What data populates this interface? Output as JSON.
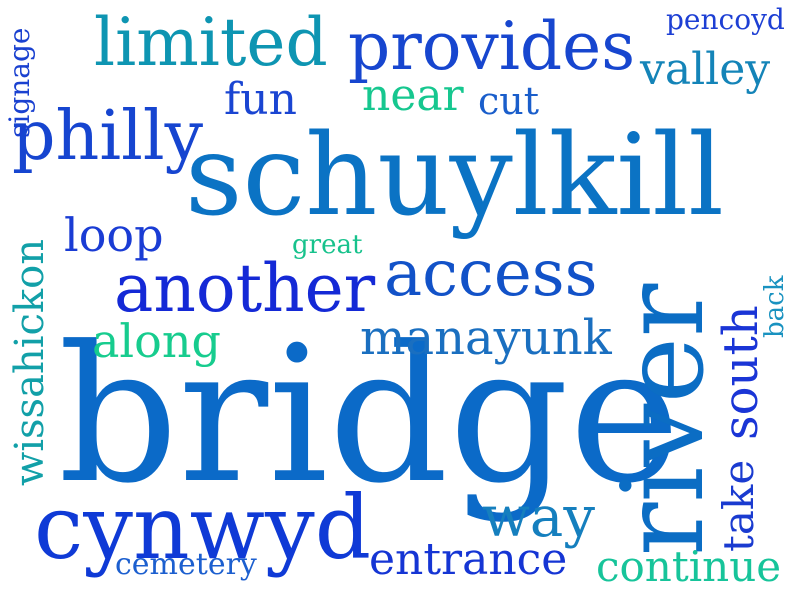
{
  "words": {
    "schuylkill": {
      "text": "schuylkill",
      "color": "#0b73c4"
    },
    "bridge": {
      "text": "bridge",
      "color": "#0b6ac8"
    },
    "river": {
      "text": "river",
      "color": "#0b6dc4"
    },
    "cynwyd": {
      "text": "cynwyd",
      "color": "#0f3ad6"
    },
    "another": {
      "text": "another",
      "color": "#1429d6"
    },
    "access": {
      "text": "access",
      "color": "#1252c8"
    },
    "provides": {
      "text": "provides",
      "color": "#1746cf"
    },
    "limited": {
      "text": "limited",
      "color": "#0e95b2"
    },
    "philly": {
      "text": "philly",
      "color": "#1645d0"
    },
    "manayunk": {
      "text": "manayunk",
      "color": "#1a6fc0"
    },
    "entrance": {
      "text": "entrance",
      "color": "#1535d4"
    },
    "continue": {
      "text": "continue",
      "color": "#17c49a"
    },
    "way": {
      "text": "way",
      "color": "#157fbe"
    },
    "south": {
      "text": "south",
      "color": "#1a35d6"
    },
    "take": {
      "text": "take",
      "color": "#1a3bd0"
    },
    "wissahickon": {
      "text": "wissahickon",
      "color": "#12a0a8"
    },
    "valley": {
      "text": "valley",
      "color": "#1484b8"
    },
    "along": {
      "text": "along",
      "color": "#17cc8e"
    },
    "loop": {
      "text": "loop",
      "color": "#1a3cd4"
    },
    "fun": {
      "text": "fun",
      "color": "#1a45d2"
    },
    "near": {
      "text": "near",
      "color": "#16c78f"
    },
    "cut": {
      "text": "cut",
      "color": "#1a5ecb"
    },
    "cemetery": {
      "text": "cemetery",
      "color": "#1c5fcf"
    },
    "pencoyd": {
      "text": "pencoyd",
      "color": "#1d3fd4"
    },
    "signage": {
      "text": "signage",
      "color": "#1a41d0"
    },
    "back": {
      "text": "back",
      "color": "#1992c0"
    },
    "great": {
      "text": "great",
      "color": "#17c28c"
    }
  }
}
